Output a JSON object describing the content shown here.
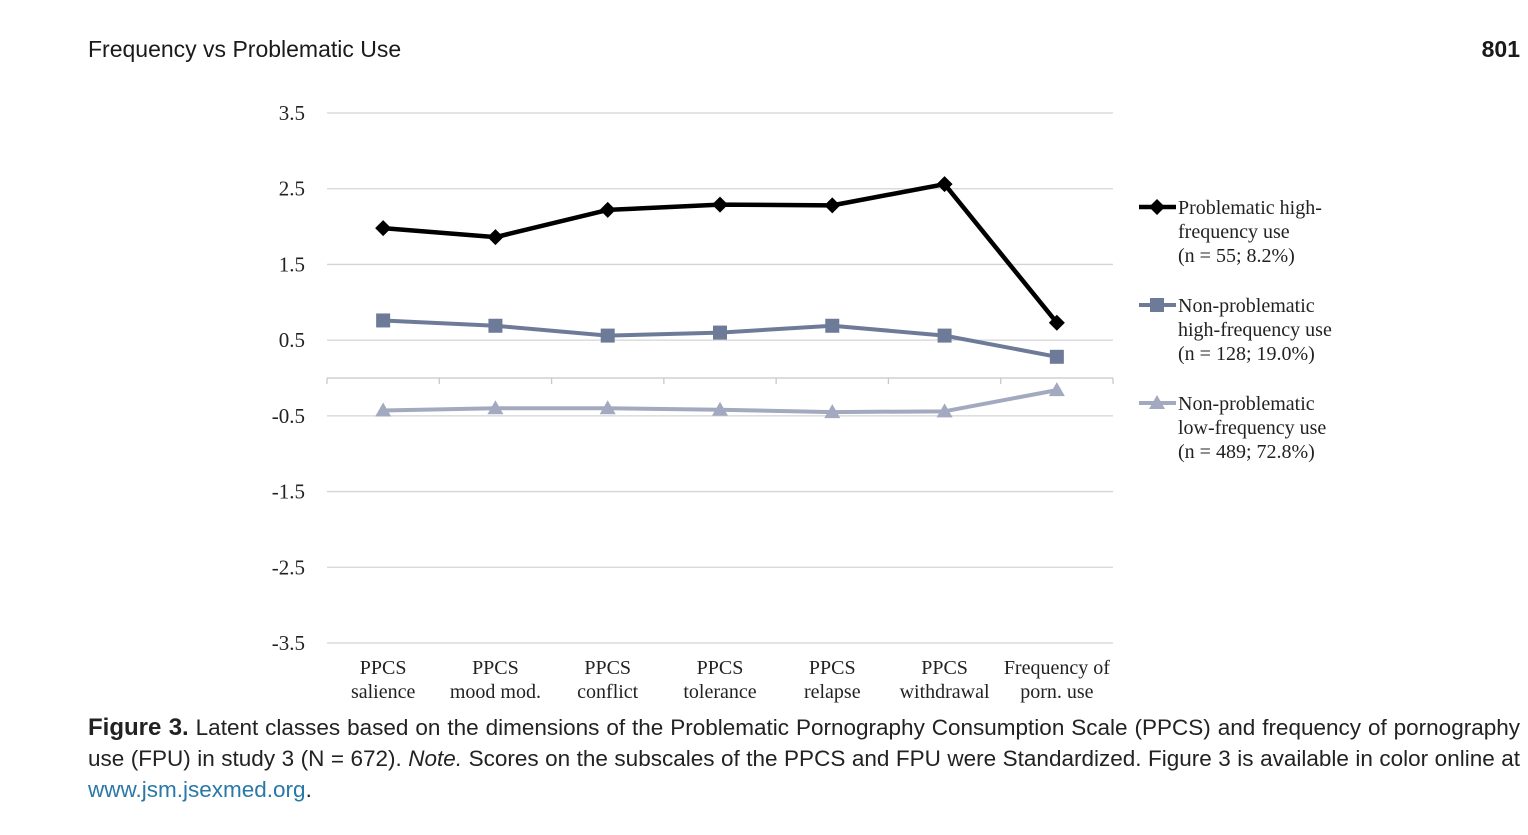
{
  "header": {
    "running_title": "Frequency vs Problematic Use",
    "page_number": "801"
  },
  "chart_data": {
    "type": "line",
    "categories": [
      [
        "PPCS",
        "salience"
      ],
      [
        "PPCS",
        "mood mod."
      ],
      [
        "PPCS",
        "conflict"
      ],
      [
        "PPCS",
        "tolerance"
      ],
      [
        "PPCS",
        "relapse"
      ],
      [
        "PPCS",
        "withdrawal"
      ],
      [
        "Frequency of",
        "porn. use"
      ]
    ],
    "ylim": [
      -3.5,
      3.5
    ],
    "yticks": [
      "3.5",
      "2.5",
      "1.5",
      "0.5",
      "-0.5",
      "-1.5",
      "-2.5",
      "-3.5"
    ],
    "ytick_values": [
      3.5,
      2.5,
      1.5,
      0.5,
      -0.5,
      -1.5,
      -2.5,
      -3.5
    ],
    "x_axis_at": 0,
    "grid": true,
    "legend_position": "right",
    "series": [
      {
        "name": [
          "Problematic high-",
          "frequency use",
          "(n = 55; 8.2%)"
        ],
        "marker": "diamond",
        "color": "#000000",
        "values": [
          1.98,
          1.86,
          2.22,
          2.29,
          2.28,
          2.56,
          0.73
        ]
      },
      {
        "name": [
          "Non-problematic",
          "high-frequency use",
          "(n = 128; 19.0%)"
        ],
        "marker": "square",
        "color": "#6e7b98",
        "values": [
          0.76,
          0.69,
          0.56,
          0.6,
          0.69,
          0.56,
          0.28
        ]
      },
      {
        "name": [
          "Non-problematic",
          "low-frequency use",
          "(n = 489; 72.8%)"
        ],
        "marker": "triangle",
        "color": "#a3a9bf",
        "values": [
          -0.43,
          -0.4,
          -0.4,
          -0.42,
          -0.45,
          -0.44,
          -0.16
        ]
      }
    ]
  },
  "caption": {
    "label": "Figure 3.",
    "text1": " Latent classes based on the dimensions of the Problematic Pornography Consumption Scale (PPCS) and frequency of pornography use (FPU) in study 3 (N = 672). ",
    "note_label": "Note.",
    "text2": " Scores on the subscales of the PPCS and FPU were Standardized. Figure 3 is available in color online at ",
    "link": "www.jsm.jsexmed.org",
    "text3": "."
  }
}
